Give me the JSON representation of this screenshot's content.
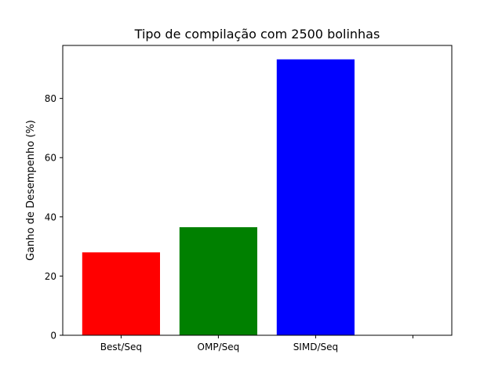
{
  "chart_data": {
    "type": "bar",
    "title": "Tipo de compilação com 2500 bolinhas",
    "xlabel": "",
    "ylabel": "Ganho de Desempenho (%)",
    "categories": [
      "Best/Seq",
      "OMP/Seq",
      "SIMD/Seq"
    ],
    "values": [
      28,
      36.5,
      93.2
    ],
    "colors": [
      "#ff0000",
      "#008000",
      "#0000ff"
    ],
    "ylim": [
      0,
      97.9
    ],
    "yticks": [
      0,
      20,
      40,
      60,
      80
    ],
    "ytick_labels": [
      "0",
      "20",
      "40",
      "60",
      "80"
    ],
    "grid": false,
    "legend": "none"
  }
}
